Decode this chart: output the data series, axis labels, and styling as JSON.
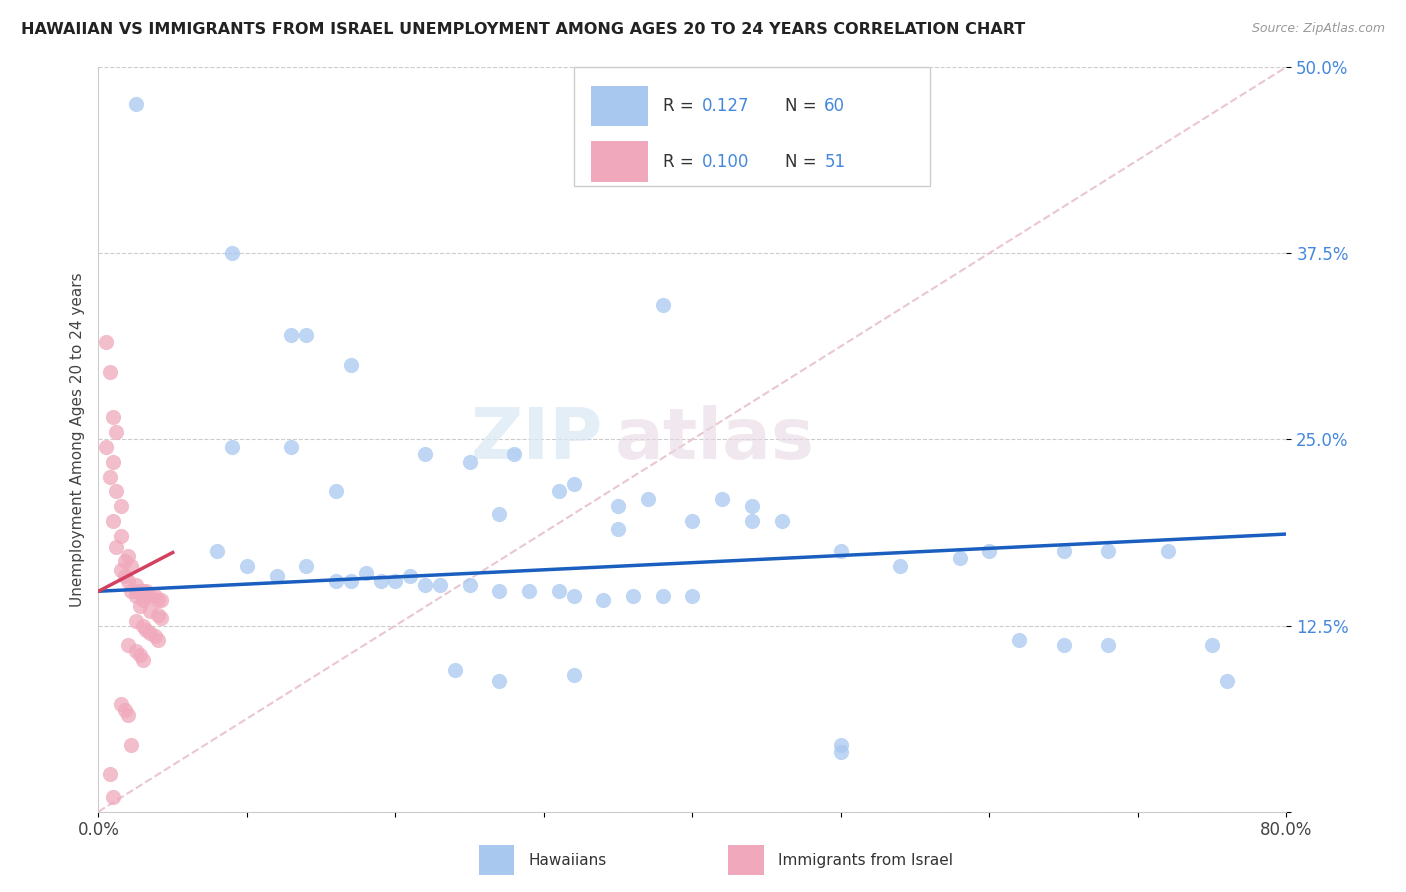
{
  "title": "HAWAIIAN VS IMMIGRANTS FROM ISRAEL UNEMPLOYMENT AMONG AGES 20 TO 24 YEARS CORRELATION CHART",
  "source": "Source: ZipAtlas.com",
  "ylabel": "Unemployment Among Ages 20 to 24 years",
  "xlim": [
    0.0,
    0.8
  ],
  "ylim": [
    0.0,
    0.5
  ],
  "hawaiian_color": "#a8c8f0",
  "israel_color": "#f0a8bc",
  "hawaiian_line_color": "#1a5fbf",
  "israel_line_color": "#d44060",
  "diagonal_color": "#e8c0cc",
  "legend_text_color": "#4488dd",
  "hawaiians_label": "Hawaiians",
  "israel_label": "Immigrants from Israel",
  "hawaiian_intercept": 0.148,
  "hawaiian_slope": 0.048,
  "israel_intercept": 0.148,
  "israel_slope": 0.52,
  "hawaiian_points": [
    [
      0.025,
      0.475
    ],
    [
      0.09,
      0.375
    ],
    [
      0.13,
      0.32
    ],
    [
      0.14,
      0.32
    ],
    [
      0.17,
      0.3
    ],
    [
      0.22,
      0.24
    ],
    [
      0.25,
      0.235
    ],
    [
      0.13,
      0.245
    ],
    [
      0.38,
      0.34
    ],
    [
      0.09,
      0.245
    ],
    [
      0.16,
      0.215
    ],
    [
      0.28,
      0.24
    ],
    [
      0.32,
      0.22
    ],
    [
      0.31,
      0.215
    ],
    [
      0.27,
      0.2
    ],
    [
      0.35,
      0.205
    ],
    [
      0.35,
      0.19
    ],
    [
      0.37,
      0.21
    ],
    [
      0.4,
      0.195
    ],
    [
      0.42,
      0.21
    ],
    [
      0.44,
      0.205
    ],
    [
      0.44,
      0.195
    ],
    [
      0.46,
      0.195
    ],
    [
      0.5,
      0.175
    ],
    [
      0.54,
      0.165
    ],
    [
      0.58,
      0.17
    ],
    [
      0.6,
      0.175
    ],
    [
      0.65,
      0.175
    ],
    [
      0.68,
      0.175
    ],
    [
      0.72,
      0.175
    ],
    [
      0.08,
      0.175
    ],
    [
      0.1,
      0.165
    ],
    [
      0.12,
      0.158
    ],
    [
      0.14,
      0.165
    ],
    [
      0.16,
      0.155
    ],
    [
      0.17,
      0.155
    ],
    [
      0.18,
      0.16
    ],
    [
      0.19,
      0.155
    ],
    [
      0.2,
      0.155
    ],
    [
      0.21,
      0.158
    ],
    [
      0.22,
      0.152
    ],
    [
      0.23,
      0.152
    ],
    [
      0.25,
      0.152
    ],
    [
      0.27,
      0.148
    ],
    [
      0.29,
      0.148
    ],
    [
      0.31,
      0.148
    ],
    [
      0.32,
      0.145
    ],
    [
      0.34,
      0.142
    ],
    [
      0.36,
      0.145
    ],
    [
      0.38,
      0.145
    ],
    [
      0.4,
      0.145
    ],
    [
      0.24,
      0.095
    ],
    [
      0.27,
      0.088
    ],
    [
      0.32,
      0.092
    ],
    [
      0.5,
      0.045
    ],
    [
      0.5,
      0.04
    ],
    [
      0.62,
      0.115
    ],
    [
      0.65,
      0.112
    ],
    [
      0.68,
      0.112
    ],
    [
      0.75,
      0.112
    ],
    [
      0.76,
      0.088
    ]
  ],
  "israel_points": [
    [
      0.005,
      0.315
    ],
    [
      0.008,
      0.295
    ],
    [
      0.01,
      0.265
    ],
    [
      0.012,
      0.255
    ],
    [
      0.005,
      0.245
    ],
    [
      0.01,
      0.235
    ],
    [
      0.008,
      0.225
    ],
    [
      0.012,
      0.215
    ],
    [
      0.015,
      0.205
    ],
    [
      0.01,
      0.195
    ],
    [
      0.015,
      0.185
    ],
    [
      0.012,
      0.178
    ],
    [
      0.02,
      0.172
    ],
    [
      0.018,
      0.168
    ],
    [
      0.022,
      0.165
    ],
    [
      0.015,
      0.162
    ],
    [
      0.018,
      0.158
    ],
    [
      0.02,
      0.155
    ],
    [
      0.025,
      0.152
    ],
    [
      0.022,
      0.148
    ],
    [
      0.025,
      0.148
    ],
    [
      0.028,
      0.148
    ],
    [
      0.03,
      0.148
    ],
    [
      0.032,
      0.148
    ],
    [
      0.025,
      0.145
    ],
    [
      0.03,
      0.142
    ],
    [
      0.032,
      0.145
    ],
    [
      0.035,
      0.145
    ],
    [
      0.038,
      0.145
    ],
    [
      0.04,
      0.142
    ],
    [
      0.042,
      0.142
    ],
    [
      0.028,
      0.138
    ],
    [
      0.035,
      0.135
    ],
    [
      0.04,
      0.132
    ],
    [
      0.042,
      0.13
    ],
    [
      0.025,
      0.128
    ],
    [
      0.03,
      0.125
    ],
    [
      0.032,
      0.122
    ],
    [
      0.035,
      0.12
    ],
    [
      0.038,
      0.118
    ],
    [
      0.04,
      0.115
    ],
    [
      0.02,
      0.112
    ],
    [
      0.025,
      0.108
    ],
    [
      0.028,
      0.105
    ],
    [
      0.03,
      0.102
    ],
    [
      0.015,
      0.072
    ],
    [
      0.018,
      0.068
    ],
    [
      0.02,
      0.065
    ],
    [
      0.022,
      0.045
    ],
    [
      0.008,
      0.025
    ],
    [
      0.01,
      0.01
    ]
  ]
}
